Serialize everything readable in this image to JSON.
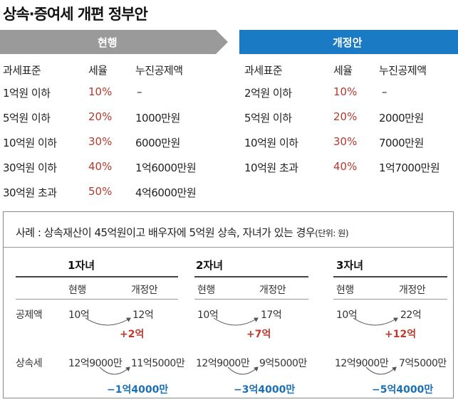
{
  "title": "상속·증여세 개편 정부안",
  "current": {
    "header": "현행",
    "col_headers": [
      "과세표준",
      "세율",
      "누진공제액"
    ],
    "rows": [
      {
        "bracket": "1억원 이하",
        "rate": "10%",
        "deduction": "–"
      },
      {
        "bracket": "5억원 이하",
        "rate": "20%",
        "deduction": "1000만원"
      },
      {
        "bracket": "10억원 이하",
        "rate": "30%",
        "deduction": "6000만원"
      },
      {
        "bracket": "30억원 이하",
        "rate": "40%",
        "deduction": "1억6000만원"
      },
      {
        "bracket": "30억원 초과",
        "rate": "50%",
        "deduction": "4억6000만원"
      }
    ]
  },
  "proposal": {
    "header": "개정안",
    "col_headers": [
      "과세표준",
      "세율",
      "누진공제액"
    ],
    "rows": [
      {
        "bracket": "2억원 이하",
        "rate": "10%",
        "deduction": "–"
      },
      {
        "bracket": "5억원 이하",
        "rate": "20%",
        "deduction": "2000만원"
      },
      {
        "bracket": "10억원 이하",
        "rate": "30%",
        "deduction": "7000만원"
      },
      {
        "bracket": "10억원 초과",
        "rate": "40%",
        "deduction": "1억7000만원"
      }
    ]
  },
  "case": {
    "description": "사례 : 상속재산이 45억원이고 배우자에 5억원 상속, 자녀가 있는 경우",
    "unit": "(단위: 원)",
    "row_labels": [
      "공제액",
      "상속세"
    ],
    "sub_headers": [
      "현행",
      "개정안"
    ],
    "groups": [
      {
        "title": "1자녀",
        "deduction": {
          "current": "10억",
          "proposal": "12억",
          "diff": "+2억"
        },
        "tax": {
          "current": "12억9000만",
          "proposal": "11억5000만",
          "diff": "−1억4000만"
        }
      },
      {
        "title": "2자녀",
        "deduction": {
          "current": "10억",
          "proposal": "17억",
          "diff": "+7억"
        },
        "tax": {
          "current": "12억9000만",
          "proposal": "9억5000만",
          "diff": "−3억4000만"
        }
      },
      {
        "title": "3자녀",
        "deduction": {
          "current": "10억",
          "proposal": "22억",
          "diff": "+12억"
        },
        "tax": {
          "current": "12억9000만",
          "proposal": "7억5000만",
          "diff": "−5억4000만"
        }
      }
    ]
  },
  "chart_data": {
    "type": "table",
    "title": "상속·증여세 개편 정부안",
    "current_rates": {
      "brackets": [
        "1억원 이하",
        "5억원 이하",
        "10억원 이하",
        "30억원 이하",
        "30억원 초과"
      ],
      "rates_pct": [
        10,
        20,
        30,
        40,
        50
      ]
    },
    "proposal_rates": {
      "brackets": [
        "2억원 이하",
        "5억원 이하",
        "10억원 이하",
        "10억원 초과"
      ],
      "rates_pct": [
        10,
        20,
        30,
        40
      ]
    }
  },
  "colors": {
    "current_header": "#9a9a9a",
    "proposal_header": "#1a7ac4",
    "rate": "#b03a2e",
    "increase": "#c0392b",
    "decrease": "#1a6fb5"
  }
}
